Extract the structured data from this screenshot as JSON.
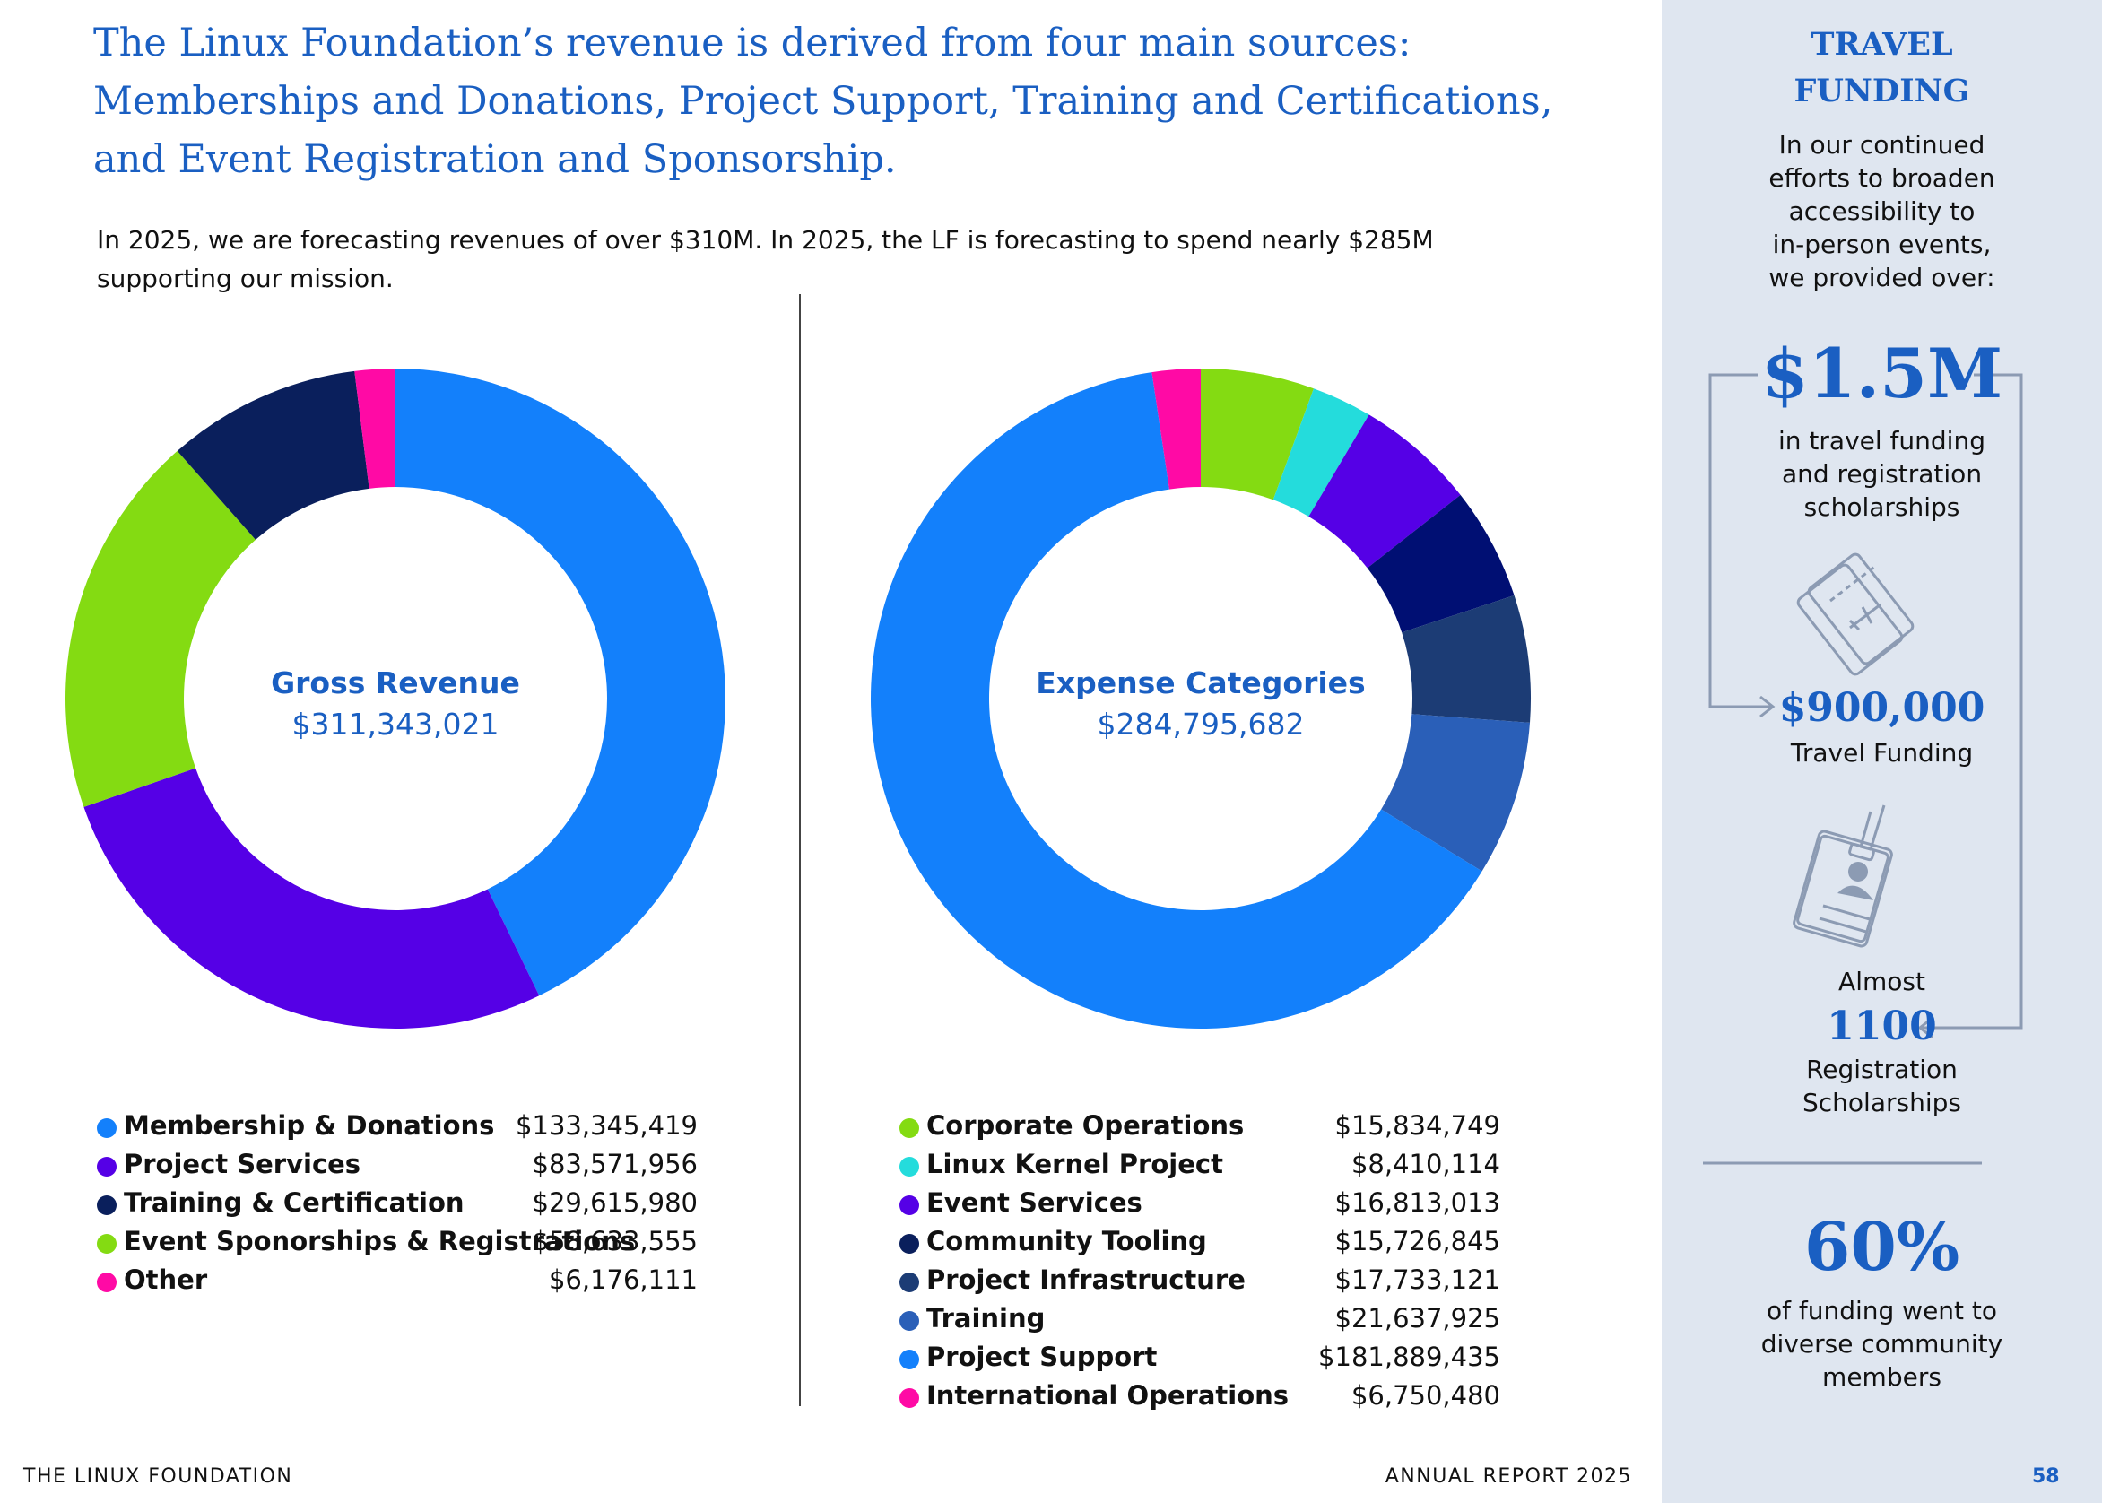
{
  "headline": {
    "line1": "The Linux Foundation’s revenue is derived from four main sources:",
    "line2": "Memberships and Donations, Project Support, Training and Certifications,",
    "line3": "and Event Registration and Sponsorship."
  },
  "intro": "In 2025, we are forecasting revenues of over $310M. In 2025, the LF is forecasting to spend nearly $285M supporting our mission.",
  "chart_data": [
    {
      "type": "pie",
      "title": "Gross Revenue",
      "total": "$311,343,021",
      "categories": [
        "Membership & Donations",
        "Project Services",
        "Training & Certification",
        "Event Sponorships & Registrations",
        "Other"
      ],
      "values": [
        133345419,
        83571956,
        29615980,
        58633555,
        6176111
      ],
      "value_labels": [
        "$133,345,419",
        "$83,571,956",
        "$29,615,980",
        "$58,633,555",
        "$6,176,111"
      ],
      "colors": [
        "#1380fb",
        "#5500e6",
        "#0a1f5c",
        "#84db12",
        "#ff0aa5"
      ],
      "draw_order": [
        0,
        1,
        3,
        2,
        4
      ]
    },
    {
      "type": "pie",
      "title": "Expense Categories",
      "total": "$284,795,682",
      "categories": [
        "Corporate Operations",
        "Linux Kernel Project",
        "Event Services",
        "Community Tooling",
        "Project Infrastructure",
        "Training",
        "Project Support",
        "International Operations"
      ],
      "values": [
        15834749,
        8410114,
        16813013,
        15726845,
        17733121,
        21637925,
        181889435,
        6750480
      ],
      "value_labels": [
        "$15,834,749",
        "$8,410,114",
        "$16,813,013",
        "$15,726,845",
        "$17,733,121",
        "$21,637,925",
        "$181,889,435",
        "$6,750,480"
      ],
      "colors": [
        "#84db12",
        "#24dcdc",
        "#5500e6",
        "#000f73",
        "#1c3c75",
        "#2a5fb8",
        "#1380fb",
        "#ff0aa5"
      ],
      "draw_order": [
        0,
        1,
        2,
        3,
        4,
        5,
        6,
        7
      ]
    }
  ],
  "sidebar": {
    "title_line1": "TRAVEL",
    "title_line2": "FUNDING",
    "intro_lines": [
      "In our continued",
      "efforts to broaden",
      "accessibility to",
      "in-person events,",
      "we provided over:"
    ],
    "big_amount": "$1.5M",
    "big_desc_lines": [
      "in travel funding",
      "and registration",
      "scholarships"
    ],
    "travel_amount": "$900,000",
    "travel_label": "Travel Funding",
    "almost": "Almost",
    "scholarship_count": "1100",
    "scholarship_lines": [
      "Registration",
      "Scholarships"
    ],
    "percent": "60%",
    "percent_lines": [
      "of funding went to",
      "diverse community",
      "members"
    ]
  },
  "footer": {
    "org": "THE LINUX FOUNDATION",
    "report": "ANNUAL REPORT 2025",
    "page": "58"
  }
}
